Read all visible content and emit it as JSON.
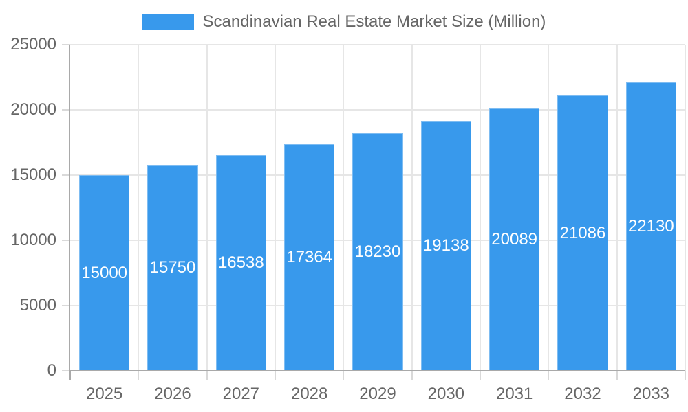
{
  "chart_data": {
    "type": "bar",
    "title": "Scandinavian Real Estate Market Size (Million)",
    "legend_position": "top",
    "series_name": "Scandinavian Real Estate Market Size (Million)",
    "categories": [
      "2025",
      "2026",
      "2027",
      "2028",
      "2029",
      "2030",
      "2031",
      "2032",
      "2033"
    ],
    "values": [
      15000,
      15750,
      16538,
      17364,
      18230,
      19138,
      20089,
      21086,
      22130
    ],
    "value_labels": [
      "15000",
      "15750",
      "16538",
      "17364",
      "18230",
      "19138",
      "20089",
      "21086",
      "22130"
    ],
    "xlabel": "",
    "ylabel": "",
    "ylim": [
      0,
      25000
    ],
    "yticks": [
      0,
      5000,
      10000,
      15000,
      20000,
      25000
    ],
    "ytick_labels": [
      "0",
      "5000",
      "10000",
      "15000",
      "20000",
      "25000"
    ],
    "grid": true,
    "colors": {
      "bar": "#3899EC",
      "value_label": "#FFFFFF",
      "gridline": "#E6E6E6",
      "axis_line": "#A9A9A9",
      "tick_mark": "#D9D9D9",
      "tick_label": "#666666",
      "legend_text": "#666666",
      "background": "#FFFFFF"
    }
  }
}
